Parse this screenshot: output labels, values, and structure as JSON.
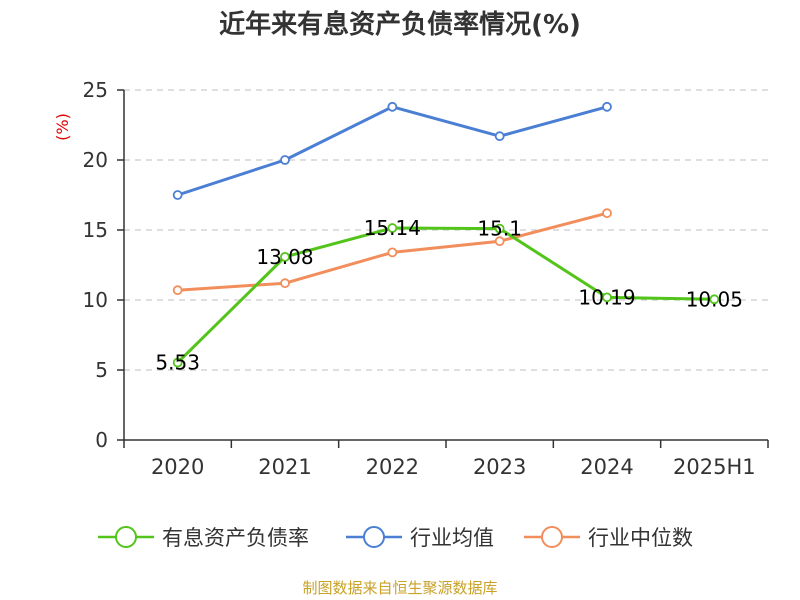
{
  "chart_data": {
    "type": "line",
    "title": "近年来有息资产负债率情况(%)",
    "ylabel": "(%)",
    "xlabel": "",
    "categories": [
      "2020",
      "2021",
      "2022",
      "2023",
      "2024",
      "2025H1"
    ],
    "ylim": [
      0,
      25
    ],
    "yticks": [
      "0",
      "5",
      "10",
      "15",
      "20",
      "25"
    ],
    "grid": true,
    "legend_position": "bottom",
    "series": [
      {
        "name": "有息资产负债率",
        "color": "#52c41a",
        "values": [
          5.53,
          13.08,
          15.14,
          15.1,
          10.19,
          10.05
        ],
        "labels": [
          "5.53",
          "13.08",
          "15.14",
          "15.1",
          "10.19",
          "10.05"
        ]
      },
      {
        "name": "行业均值",
        "color": "#4a7fd4",
        "values": [
          17.5,
          20.0,
          23.8,
          21.7,
          23.8,
          null
        ],
        "labels": []
      },
      {
        "name": "行业中位数",
        "color": "#f28e5c",
        "values": [
          10.7,
          11.2,
          13.4,
          14.2,
          16.2,
          null
        ],
        "labels": []
      }
    ]
  },
  "footer": {
    "source": "制图数据来自恒生聚源数据库"
  }
}
